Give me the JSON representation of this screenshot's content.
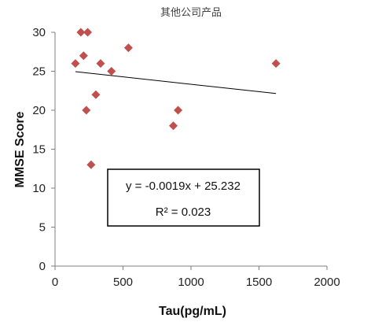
{
  "chart_data": {
    "type": "scatter",
    "title": "其他公司产品",
    "xlabel": "Tau(pg/mL)",
    "ylabel": "MMSE Score",
    "xlim": [
      0,
      2000
    ],
    "ylim": [
      0,
      30
    ],
    "x_ticks": [
      "0",
      "500",
      "1000",
      "1500",
      "2000"
    ],
    "y_ticks": [
      "0",
      "5",
      "10",
      "15",
      "20",
      "25",
      "30"
    ],
    "grid": false,
    "marker_color": "#c0504d",
    "trendline_color": "#000000",
    "points": [
      {
        "x": 150,
        "y": 26
      },
      {
        "x": 190,
        "y": 30
      },
      {
        "x": 210,
        "y": 27
      },
      {
        "x": 230,
        "y": 20
      },
      {
        "x": 240,
        "y": 30
      },
      {
        "x": 265,
        "y": 13
      },
      {
        "x": 300,
        "y": 22
      },
      {
        "x": 335,
        "y": 26
      },
      {
        "x": 415,
        "y": 25
      },
      {
        "x": 540,
        "y": 28
      },
      {
        "x": 870,
        "y": 18
      },
      {
        "x": 905,
        "y": 20
      },
      {
        "x": 1625,
        "y": 26
      }
    ],
    "trendline": {
      "slope": -0.0019,
      "intercept": 25.232,
      "x_range": [
        150,
        1625
      ]
    },
    "annotation": {
      "equation": "y = -0.0019x + 25.232",
      "r_squared": "R² = 0.023"
    }
  }
}
